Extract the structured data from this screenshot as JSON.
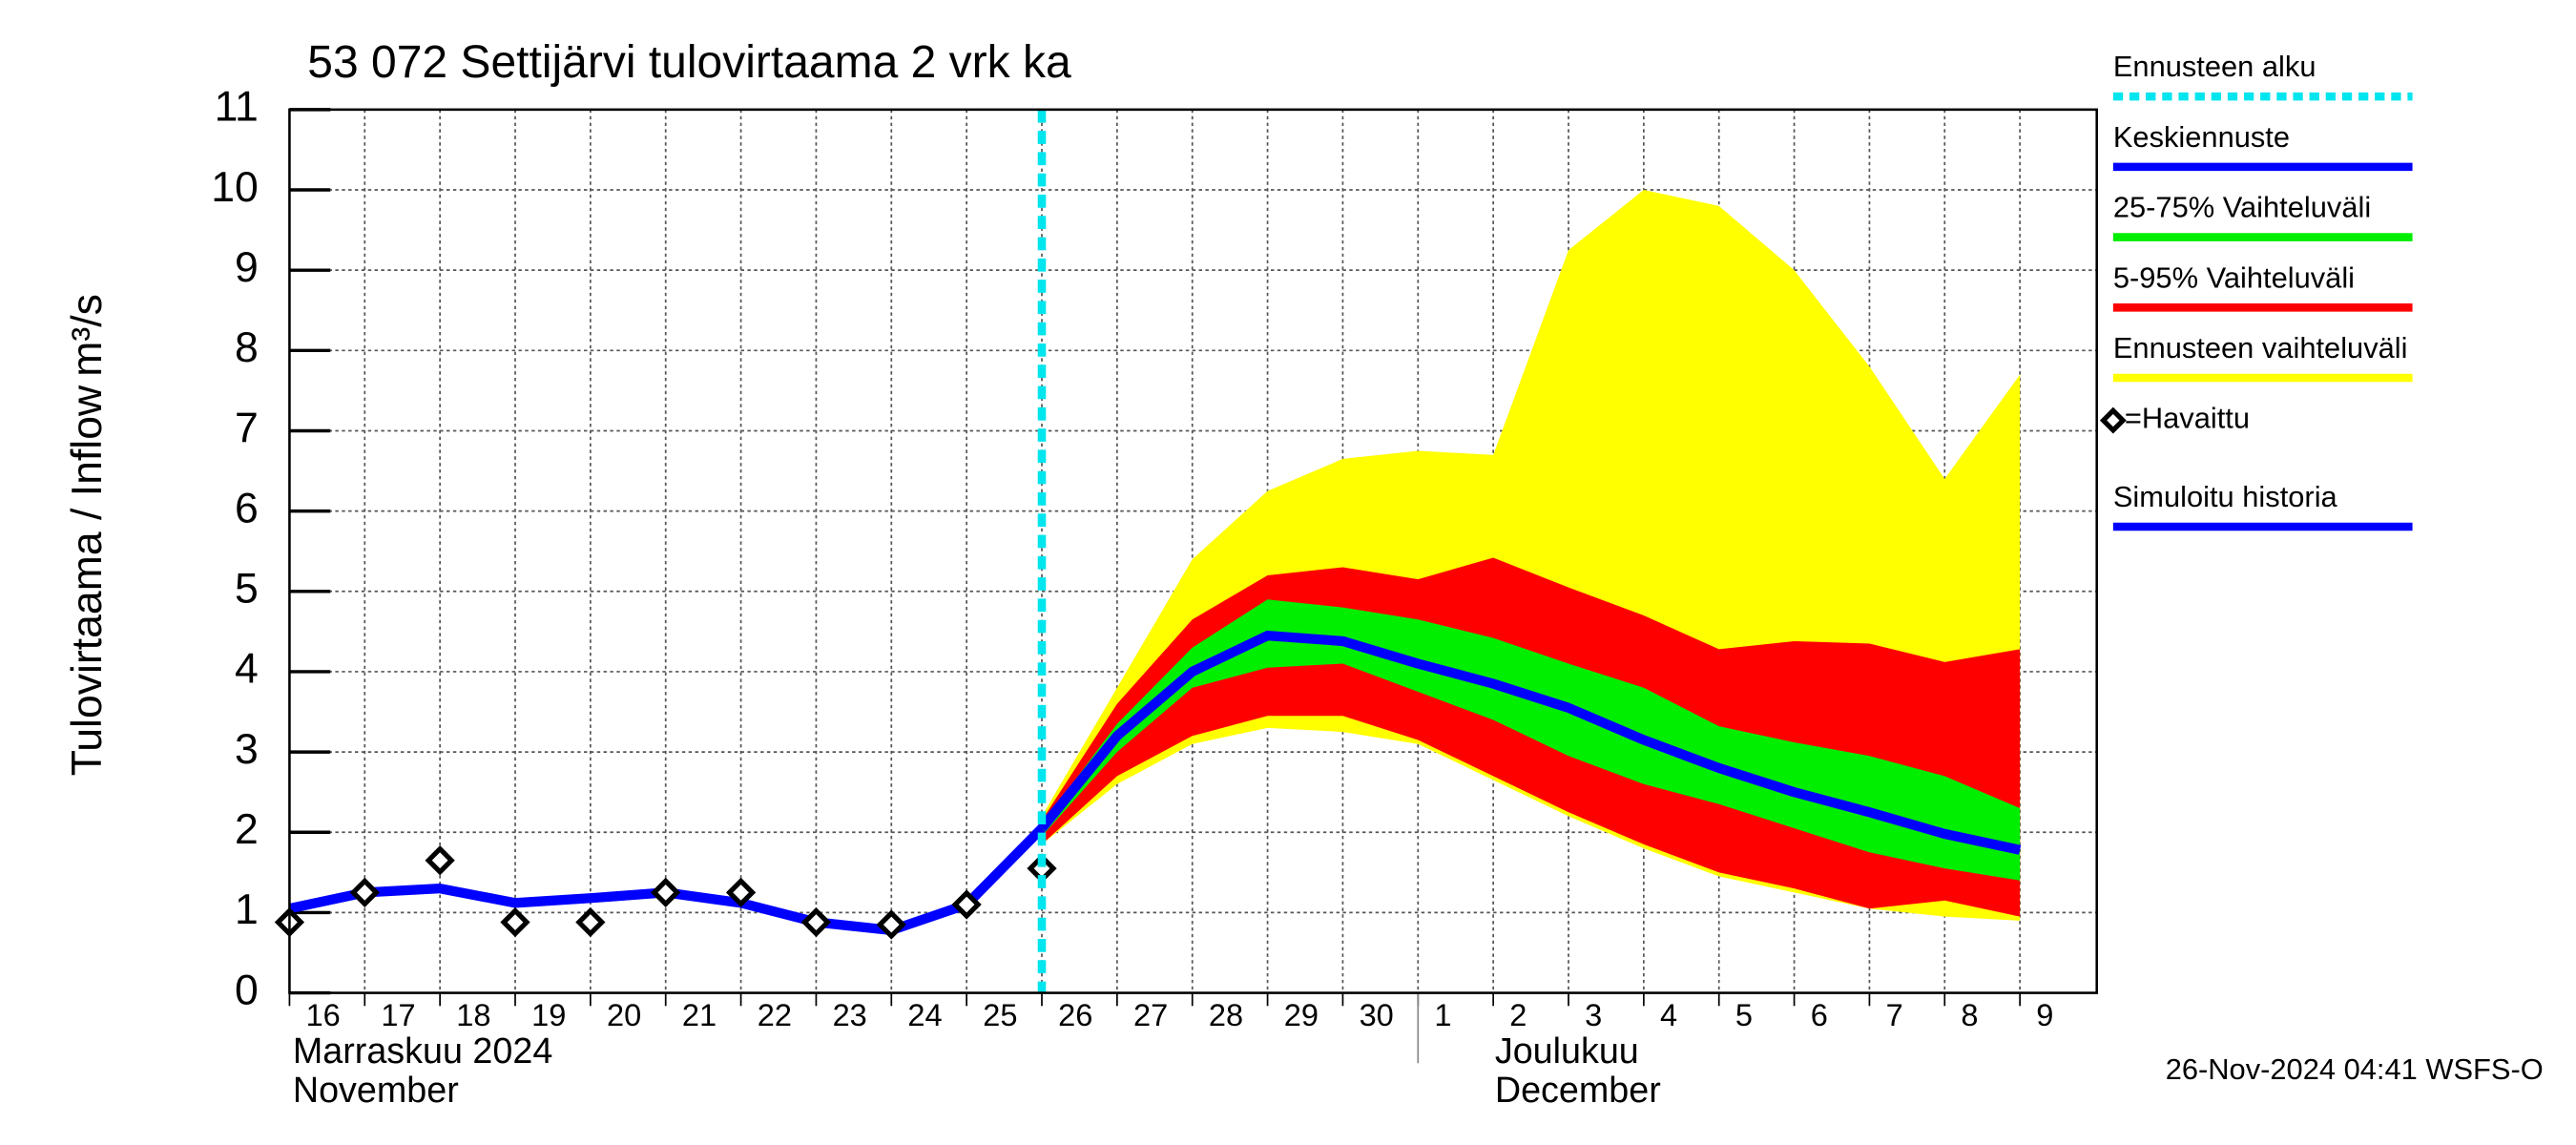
{
  "chart_data": {
    "type": "line",
    "title": "53 072 Settijärvi tulovirtaama 2 vrk ka",
    "y_label": "Tulovirtaama / Inflow",
    "y_unit": "m³/s",
    "categories": [
      "16",
      "17",
      "18",
      "19",
      "20",
      "21",
      "22",
      "23",
      "24",
      "25",
      "26",
      "27",
      "28",
      "29",
      "30",
      "1",
      "2",
      "3",
      "4",
      "5",
      "6",
      "7",
      "8",
      "9"
    ],
    "month_labels": [
      {
        "index": 0,
        "lines": [
          "Marraskuu 2024",
          "November"
        ]
      },
      {
        "index": 15,
        "lines": [
          "Joulukuu",
          "December"
        ]
      }
    ],
    "ylim": [
      0,
      11
    ],
    "yticks": [
      0,
      1,
      2,
      3,
      4,
      5,
      6,
      7,
      8,
      9,
      10,
      11
    ],
    "grid": true,
    "forecast_start": {
      "name": "Ennusteen alku",
      "color": "#00e5ee",
      "index": 10
    },
    "bands": [
      {
        "name": "Ennusteen vaihteluväli",
        "color": "#ffff00",
        "upper": [
          null,
          null,
          null,
          null,
          null,
          null,
          null,
          null,
          null,
          null,
          2.2,
          3.8,
          5.4,
          6.25,
          6.65,
          6.75,
          6.7,
          9.25,
          10.0,
          9.8,
          9.0,
          7.8,
          6.4,
          7.7
        ],
        "lower": [
          null,
          null,
          null,
          null,
          null,
          null,
          null,
          null,
          null,
          null,
          1.85,
          2.6,
          3.1,
          3.3,
          3.25,
          3.1,
          2.65,
          2.2,
          1.8,
          1.45,
          1.25,
          1.05,
          0.95,
          0.9
        ]
      },
      {
        "name": "5-95% Vaihteluväli",
        "color": "#ff0000",
        "upper": [
          null,
          null,
          null,
          null,
          null,
          null,
          null,
          null,
          null,
          null,
          2.15,
          3.6,
          4.65,
          5.2,
          5.3,
          5.15,
          5.42,
          5.05,
          4.7,
          4.28,
          4.38,
          4.35,
          4.12,
          4.28
        ],
        "lower": [
          null,
          null,
          null,
          null,
          null,
          null,
          null,
          null,
          null,
          null,
          1.85,
          2.7,
          3.2,
          3.45,
          3.45,
          3.15,
          2.7,
          2.25,
          1.85,
          1.5,
          1.3,
          1.05,
          1.15,
          0.95
        ]
      },
      {
        "name": "25-75% Vaihteluväli",
        "color": "#00ee00",
        "upper": [
          null,
          null,
          null,
          null,
          null,
          null,
          null,
          null,
          null,
          null,
          2.1,
          3.35,
          4.3,
          4.9,
          4.8,
          4.65,
          4.42,
          4.1,
          3.8,
          3.32,
          3.12,
          2.95,
          2.7,
          2.3
        ],
        "lower": [
          null,
          null,
          null,
          null,
          null,
          null,
          null,
          null,
          null,
          null,
          1.95,
          3.0,
          3.8,
          4.05,
          4.1,
          3.75,
          3.4,
          2.95,
          2.6,
          2.35,
          2.05,
          1.75,
          1.55,
          1.4
        ]
      }
    ],
    "series": [
      {
        "name": "Keskiennuste",
        "color": "#0000ff",
        "kind": "line",
        "values": [
          null,
          null,
          null,
          null,
          null,
          null,
          null,
          null,
          null,
          null,
          2.05,
          3.2,
          4.0,
          4.45,
          4.38,
          4.1,
          3.85,
          3.55,
          3.15,
          2.8,
          2.5,
          2.25,
          1.98,
          1.78
        ]
      },
      {
        "name": "=Havaittu",
        "color": "#000000",
        "kind": "marker",
        "values": [
          0.88,
          1.25,
          1.65,
          0.88,
          0.88,
          1.25,
          1.25,
          0.88,
          0.85,
          1.1,
          1.55,
          null,
          null,
          null,
          null,
          null,
          null,
          null,
          null,
          null,
          null,
          null,
          null,
          null
        ]
      },
      {
        "name": "Simuloitu historia",
        "color": "#0000ff",
        "kind": "line",
        "values": [
          1.05,
          1.25,
          1.3,
          1.12,
          1.18,
          1.25,
          1.12,
          0.88,
          0.78,
          1.1,
          2.05,
          null,
          null,
          null,
          null,
          null,
          null,
          null,
          null,
          null,
          null,
          null,
          null,
          null
        ]
      }
    ],
    "footer": "26-Nov-2024 04:41 WSFS-O"
  }
}
